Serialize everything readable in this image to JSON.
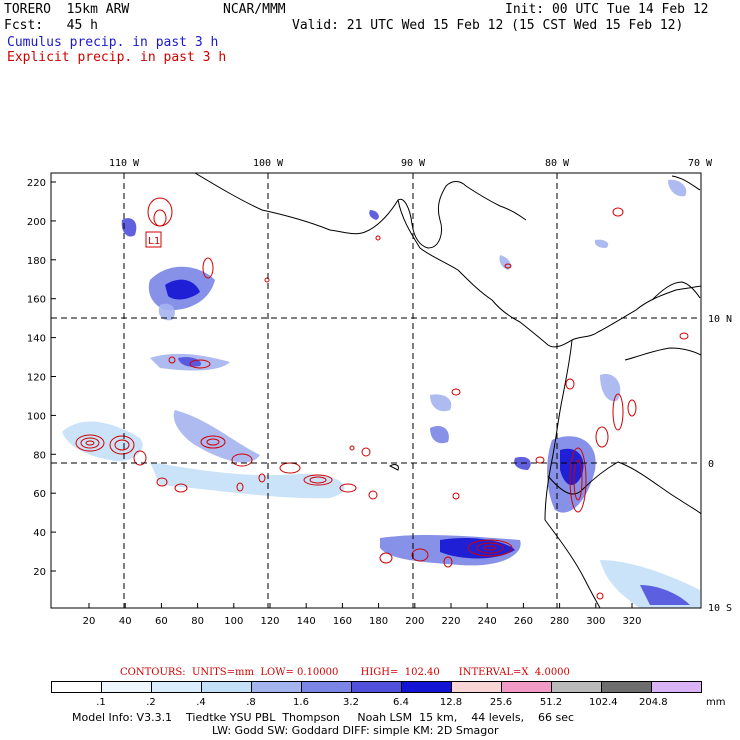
{
  "header": {
    "model": "TORERO  15km ARW",
    "org": "NCAR/MMM",
    "init": "Init: 00 UTC Tue 14 Feb 12",
    "forecast": "Fcst:   45 h",
    "valid": "Valid: 21 UTC Wed 15 Feb 12 (15 CST Wed 15 Feb 12)",
    "legend_cumulus": "Cumulus precip. in past 3 h",
    "legend_explicit": "Explicit precip. in past 3 h"
  },
  "colors": {
    "cumulus": "#1a1acc",
    "explicit": "#d00000",
    "coast": "#000000"
  },
  "map": {
    "top_lon_labels": [
      "110 W",
      "100 W",
      "90 W",
      "80 W",
      "70 W"
    ],
    "right_lat_labels": [
      "10 N",
      "0",
      "10 S"
    ],
    "left_ticks": [
      "220",
      "200",
      "180",
      "160",
      "140",
      "120",
      "100",
      "80",
      "60",
      "40",
      "20"
    ],
    "bottom_ticks": [
      "20",
      "40",
      "60",
      "80",
      "100",
      "120",
      "140",
      "160",
      "180",
      "200",
      "220",
      "240",
      "260",
      "280",
      "300",
      "320"
    ],
    "box_label": "L1"
  },
  "contour_info": {
    "label": "CONTOURS:  UNITS=mm  LOW= 0.10000       HIGH=  102.40      INTERVAL=X  4.0000"
  },
  "colorbar": {
    "values": [
      ".1",
      ".2",
      ".4",
      ".8",
      "1.6",
      "3.2",
      "6.4",
      "12.8",
      "25.6",
      "51.2",
      "102.4",
      "204.8"
    ],
    "units": "mm",
    "colors": [
      "#ffffff",
      "#eef6ff",
      "#dbeeff",
      "#c4e0f7",
      "#a4b4ee",
      "#7b85e6",
      "#5050dd",
      "#1414d4",
      "#f9d5d5",
      "#f29ac6",
      "#b9b9b9",
      "#6d6d6d",
      "#d9b3f5"
    ]
  },
  "footer": {
    "line1": "Model Info: V3.3.1    Tiedtke YSU PBL  Thompson     Noah LSM  15 km,    44 levels,    66 sec",
    "line2": "LW: Godd SW: Goddard DIFF: simple KM: 2D Smagor"
  }
}
